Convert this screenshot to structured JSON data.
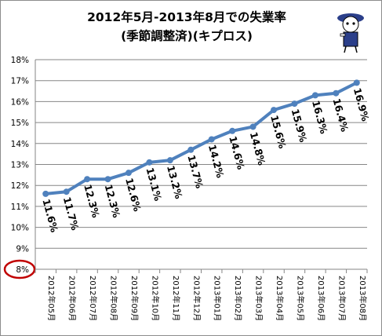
{
  "chart_data": {
    "type": "line",
    "title_line1": "2012年5月-2013年8月での失業率",
    "title_line2": "(季節調整済)(キプロス)",
    "categories": [
      "2012年05月",
      "2012年06月",
      "2012年07月",
      "2012年08月",
      "2012年09月",
      "2012年10月",
      "2012年11月",
      "2012年12月",
      "2013年01月",
      "2013年02月",
      "2013年03月",
      "2013年04月",
      "2013年05月",
      "2013年06月",
      "2013年07月",
      "2013年08月"
    ],
    "values": [
      11.6,
      11.7,
      12.3,
      12.3,
      12.6,
      13.1,
      13.2,
      13.7,
      14.2,
      14.6,
      14.8,
      15.6,
      15.9,
      16.3,
      16.4,
      16.9
    ],
    "data_labels": [
      "11.6%",
      "11.7%",
      "12.3%",
      "12.3%",
      "12.6%",
      "13.1%",
      "13.2%",
      "13.7%",
      "14.2%",
      "14.6%",
      "14.8%",
      "15.6%",
      "15.9%",
      "16.3%",
      "16.4%",
      "16.9%"
    ],
    "y_ticks": [
      "8%",
      "9%",
      "10%",
      "11%",
      "12%",
      "13%",
      "14%",
      "15%",
      "16%",
      "17%",
      "18%"
    ],
    "ylim": [
      8,
      18
    ],
    "grid": true,
    "legend": "none",
    "colors": {
      "line": "#4f81bd",
      "grid": "#868686",
      "axis_highlight": "#c00000"
    },
    "icon": "cartoon-mascot-icon"
  }
}
